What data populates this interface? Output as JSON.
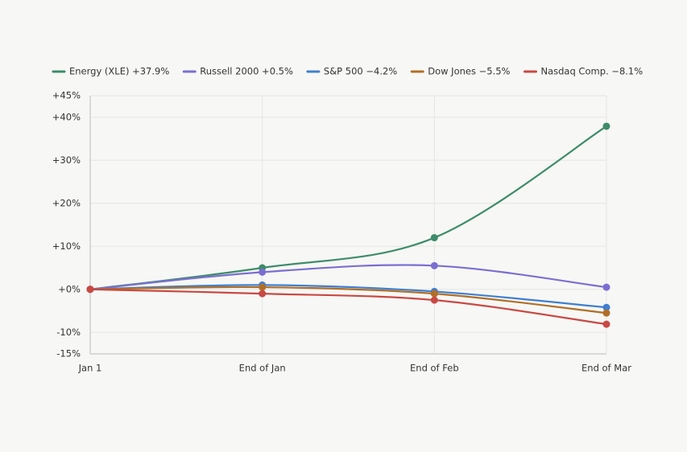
{
  "chart_data": {
    "type": "line",
    "categories": [
      "Jan 1",
      "End of Jan",
      "End of Feb",
      "End of Mar"
    ],
    "series": [
      {
        "name": "Energy (XLE) +37.9%",
        "color": "#3d8c6a",
        "values": [
          0,
          5,
          12,
          37.9
        ]
      },
      {
        "name": "Russell 2000 +0.5%",
        "color": "#7a6fd1",
        "values": [
          0,
          4,
          5.5,
          0.5
        ]
      },
      {
        "name": "S&P 500 −4.2%",
        "color": "#3f7fd1",
        "values": [
          0,
          1,
          -0.5,
          -4.2
        ]
      },
      {
        "name": "Dow Jones −5.5%",
        "color": "#b06f28",
        "values": [
          0,
          0.5,
          -1,
          -5.5
        ]
      },
      {
        "name": "Nasdaq Comp. −8.1%",
        "color": "#c94943",
        "values": [
          0,
          -1,
          -2.5,
          -8.1
        ]
      }
    ],
    "ylim": [
      -15,
      45
    ],
    "yticks": [
      {
        "value": -15,
        "label": "-15%"
      },
      {
        "value": -10,
        "label": "-10%"
      },
      {
        "value": 0,
        "label": "+0%"
      },
      {
        "value": 10,
        "label": "+10%"
      },
      {
        "value": 20,
        "label": "+20%"
      },
      {
        "value": 30,
        "label": "+30%"
      },
      {
        "value": 40,
        "label": "+40%"
      },
      {
        "value": 45,
        "label": "+45%"
      }
    ],
    "grid": true,
    "legend": "top"
  }
}
